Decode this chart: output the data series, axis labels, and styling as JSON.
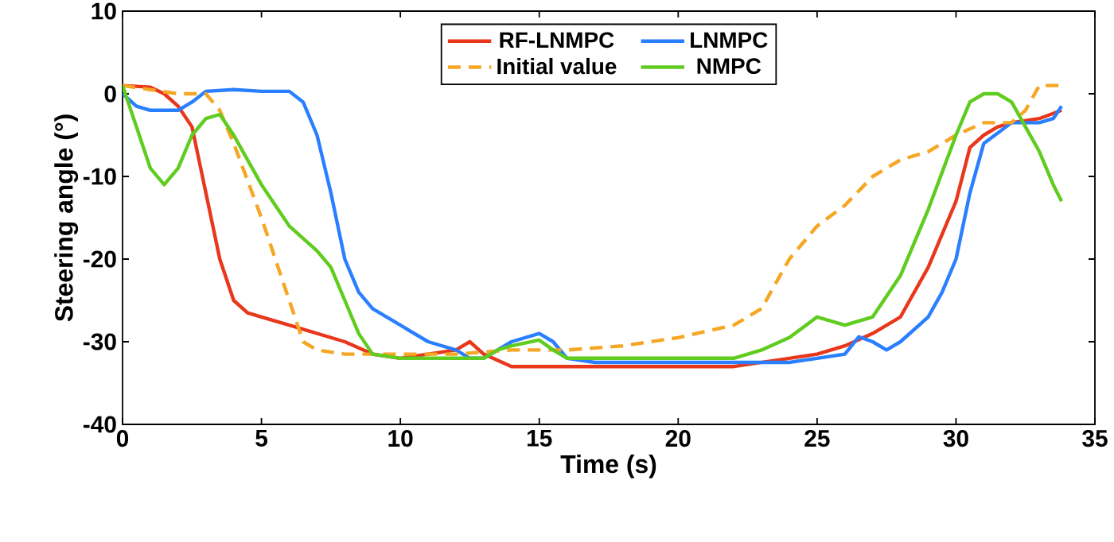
{
  "chart_data": {
    "type": "line",
    "xlabel": "Time (s)",
    "ylabel": "Steering angle (°)",
    "xlim": [
      0,
      35
    ],
    "ylim": [
      -40,
      10
    ],
    "xticks": [
      0,
      5,
      10,
      15,
      20,
      25,
      30,
      35
    ],
    "yticks": [
      -40,
      -30,
      -20,
      -10,
      0,
      10
    ],
    "grid": false,
    "legend": "top",
    "marker": "none",
    "series": [
      {
        "name": "RF-LNMPC",
        "color": "#e8371b",
        "line_style": "solid",
        "x": [
          0,
          1,
          1.5,
          2,
          2.5,
          3,
          3.5,
          4,
          4.5,
          5,
          6,
          7,
          8,
          9,
          10,
          11,
          12,
          12.5,
          13,
          14,
          15,
          20,
          22,
          24,
          25,
          26,
          27,
          28,
          29,
          30,
          30.5,
          31,
          31.5,
          32,
          33,
          33.4,
          33.8
        ],
        "values": [
          1,
          0.8,
          0,
          -1.5,
          -4,
          -12,
          -20,
          -25,
          -26.5,
          -27,
          -28,
          -29,
          -30,
          -31.5,
          -32,
          -31.5,
          -31,
          -30,
          -31.5,
          -33,
          -33,
          -33,
          -33,
          -32,
          -31.5,
          -30.5,
          -29,
          -27,
          -21,
          -13,
          -6.5,
          -5,
          -4,
          -3.5,
          -3,
          -2.5,
          -2
        ]
      },
      {
        "name": "LNMPC",
        "color": "#2a7fff",
        "line_style": "solid",
        "x": [
          0,
          0.5,
          1,
          2,
          2.5,
          3,
          4,
          5,
          6,
          6.5,
          7,
          7.5,
          8,
          8.5,
          9,
          10,
          11,
          12,
          12.5,
          13,
          14,
          15,
          15.5,
          16,
          17,
          20,
          24,
          25,
          26,
          26.5,
          27,
          27.5,
          28,
          29,
          29.5,
          30,
          30.5,
          31,
          32,
          33,
          33.5,
          33.8
        ],
        "values": [
          0,
          -1.5,
          -2,
          -2,
          -1,
          0.3,
          0.5,
          0.3,
          0.3,
          -1,
          -5,
          -12,
          -20,
          -24,
          -26,
          -28,
          -30,
          -31,
          -32,
          -32,
          -30,
          -29,
          -30,
          -32,
          -32.5,
          -32.5,
          -32.5,
          -32,
          -31.5,
          -29.4,
          -30,
          -31,
          -30,
          -27,
          -24,
          -20,
          -12,
          -6,
          -3.5,
          -3.5,
          -3,
          -1.5
        ]
      },
      {
        "name": "Initial value",
        "color": "#f5a623",
        "line_style": "dashed",
        "x": [
          0,
          1,
          2,
          3,
          3.5,
          4,
          5,
          5.5,
          6,
          6.5,
          7,
          8,
          10,
          12,
          14,
          16,
          18,
          20,
          22,
          23,
          24,
          25,
          26,
          27,
          28,
          29,
          30,
          31,
          32,
          32.5,
          33,
          33.8
        ],
        "values": [
          1,
          0.5,
          0,
          0,
          -2,
          -6,
          -15,
          -20,
          -25,
          -30,
          -31,
          -31.5,
          -31.5,
          -31.5,
          -31,
          -31,
          -30.5,
          -29.5,
          -28,
          -26,
          -20,
          -16,
          -13.5,
          -10,
          -8,
          -7,
          -5,
          -3.5,
          -3.5,
          -2,
          1,
          1
        ]
      },
      {
        "name": "NMPC",
        "color": "#5fcc1f",
        "line_style": "solid",
        "x": [
          0,
          0.5,
          1,
          1.5,
          2,
          2.5,
          3,
          3.5,
          4,
          5,
          6,
          7,
          7.5,
          8,
          8.5,
          9,
          10,
          13,
          13.5,
          14,
          15,
          15.5,
          16,
          22,
          23,
          24,
          25,
          26,
          27,
          28,
          29,
          30,
          30.5,
          31,
          31.5,
          32,
          32.5,
          33,
          33.5,
          33.8
        ],
        "values": [
          1,
          -4,
          -9,
          -11,
          -9,
          -5,
          -3,
          -2.5,
          -5,
          -11,
          -16,
          -19,
          -21,
          -25,
          -29,
          -31.5,
          -32,
          -32,
          -31,
          -30.5,
          -29.8,
          -31,
          -32,
          -32,
          -31,
          -29.5,
          -27,
          -28,
          -27,
          -22,
          -14,
          -5,
          -1,
          0,
          0,
          -1,
          -4,
          -7,
          -11,
          -13
        ]
      }
    ]
  }
}
